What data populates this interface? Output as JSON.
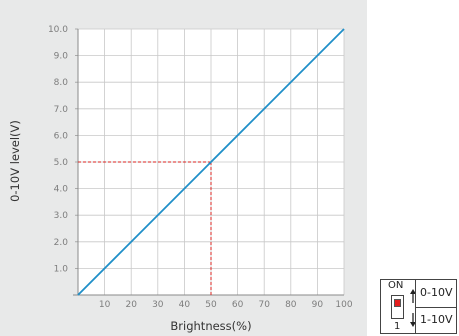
{
  "chart_data": {
    "type": "line",
    "title": "",
    "xlabel": "Brightness(%)",
    "ylabel": "0-10V level(V)",
    "xlim": [
      0,
      100
    ],
    "ylim": [
      0,
      10
    ],
    "x_ticks": [
      10,
      20,
      30,
      40,
      50,
      60,
      70,
      80,
      90,
      100
    ],
    "y_ticks": [
      "1.0",
      "2.0",
      "3.0",
      "4.0",
      "5.0",
      "6.0",
      "7.0",
      "8.0",
      "9.0",
      "10.0"
    ],
    "grid": true,
    "line_color": "#1f8fc8",
    "series": [
      {
        "x": [
          0,
          100
        ],
        "y": [
          0,
          10
        ]
      }
    ],
    "annotations": [
      {
        "type": "dashed-guide",
        "x": 50,
        "y": 5,
        "color": "#d9231f"
      }
    ]
  },
  "switch": {
    "on_label": "ON",
    "position_label": "1",
    "option_top": "0-10V",
    "option_bottom": "1-10V",
    "knob_color": "#e31d1d"
  }
}
